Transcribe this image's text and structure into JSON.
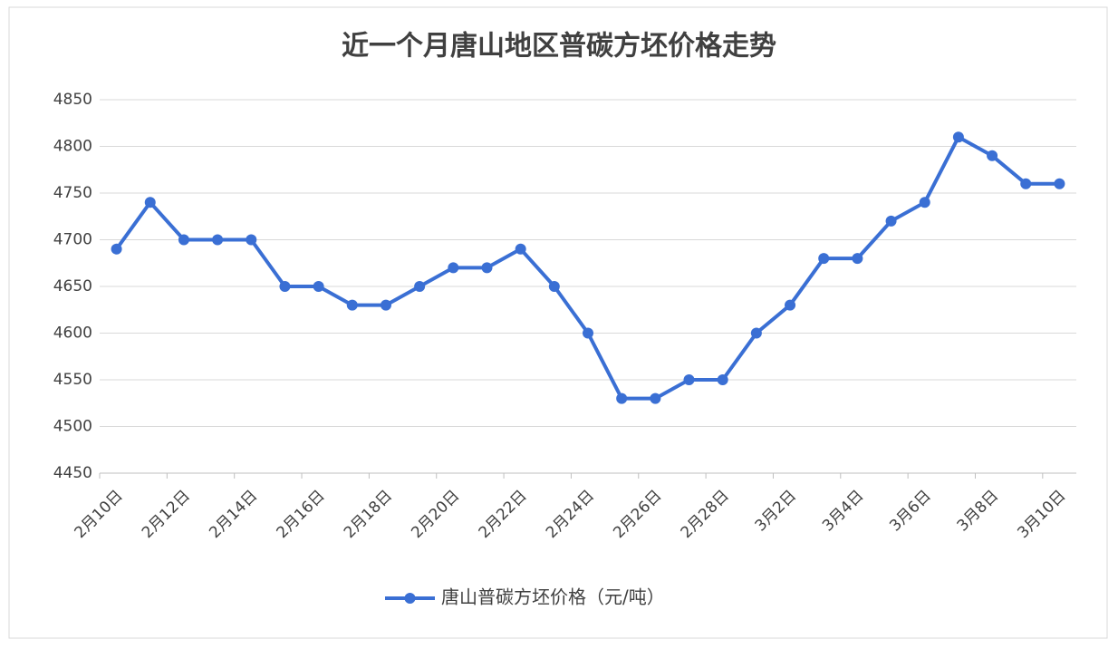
{
  "chart_data": {
    "type": "line",
    "title": "近一个月唐山地区普碳方坯价格走势",
    "categories": [
      "2月10日",
      null,
      "2月12日",
      null,
      "2月14日",
      null,
      "2月16日",
      null,
      "2月18日",
      null,
      "2月20日",
      null,
      "2月22日",
      null,
      "2月24日",
      null,
      "2月26日",
      null,
      "2月28日",
      null,
      "3月2日",
      null,
      "3月4日",
      null,
      "3月6日",
      null,
      "3月8日",
      null,
      "3月10日"
    ],
    "series": [
      {
        "name": "唐山普碳方坯价格（元/吨）",
        "color": "#3a6fd4",
        "values": [
          4690,
          4740,
          4700,
          4700,
          4700,
          4650,
          4650,
          4630,
          4630,
          4650,
          4670,
          4670,
          4690,
          4650,
          4600,
          4530,
          4530,
          4550,
          4550,
          4600,
          4630,
          4680,
          4680,
          4720,
          4740,
          4810,
          4790,
          4760,
          4760
        ]
      }
    ],
    "ylim": [
      4450,
      4850
    ],
    "yticks": [
      4450,
      4500,
      4550,
      4600,
      4650,
      4700,
      4750,
      4800,
      4850
    ],
    "grid": true,
    "legend": "bottom"
  }
}
